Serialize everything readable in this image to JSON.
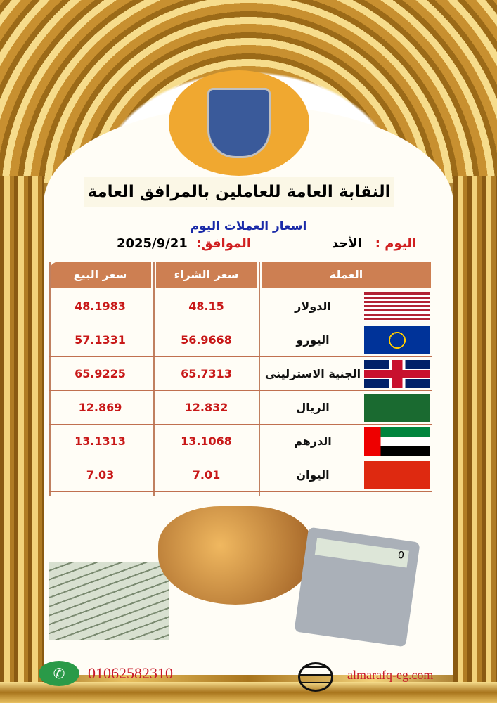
{
  "logo": {
    "text": "النقابة العامة للعاملين بالمرافق العامة"
  },
  "title": "النقابة العامة للعاملين بالمرافق العامة",
  "subtitle": "اسعار العملات اليوم",
  "day_label": "اليوم :",
  "day_value": "الأحد",
  "date_label": "الموافق:",
  "date_value": "2025/9/21",
  "headers": {
    "currency": "العملة",
    "buy": "سعر الشراء",
    "sell": "سعر البيع"
  },
  "rows": [
    {
      "currency": "الدولار",
      "flag": "us-flag",
      "buy": "48.15",
      "sell": "48.1983"
    },
    {
      "currency": "اليورو",
      "flag": "eu-flag",
      "buy": "56.9668",
      "sell": "57.1331"
    },
    {
      "currency": "الجنية الاسترليني",
      "flag": "uk-flag",
      "buy": "65.7313",
      "sell": "65.9225"
    },
    {
      "currency": "الريال",
      "flag": "saudi-flag",
      "buy": "12.832",
      "sell": "12.869"
    },
    {
      "currency": "الدرهم",
      "flag": "uae-flag",
      "buy": "13.1068",
      "sell": "13.1313"
    },
    {
      "currency": "اليوان",
      "flag": "china-flag",
      "buy": "7.01",
      "sell": "7.03"
    }
  ],
  "calculator_display": "0",
  "footer": {
    "phone": "01062582310",
    "website": "almarafq-eg.com"
  },
  "colors": {
    "header": "#cd7f52",
    "price": "#c81818",
    "subtitle": "#1a2aa8",
    "gold": "#e8c060"
  }
}
